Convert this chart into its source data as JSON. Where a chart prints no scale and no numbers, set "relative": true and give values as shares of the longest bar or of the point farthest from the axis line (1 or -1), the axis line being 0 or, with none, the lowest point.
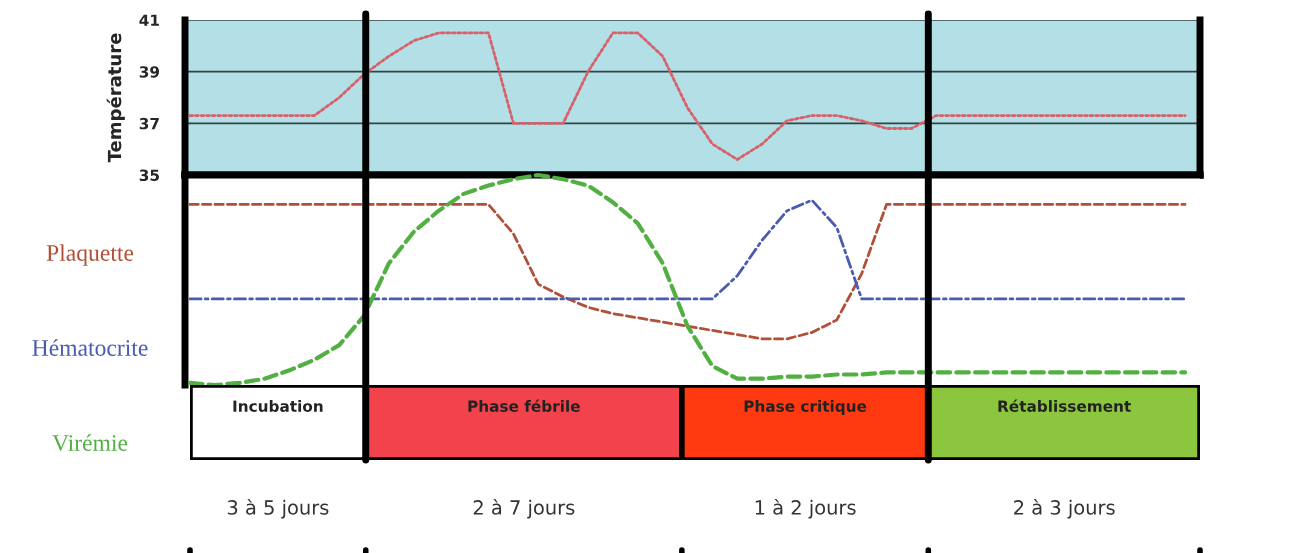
{
  "chart_data": [
    {
      "type": "line",
      "ylabel": "Température",
      "categories": [
        null,
        null,
        null,
        null,
        null,
        null,
        null,
        null,
        null,
        null,
        null,
        null,
        null,
        null,
        null,
        null,
        null,
        null,
        null,
        null,
        null,
        null,
        null,
        null,
        null,
        null,
        null,
        null,
        null,
        null,
        null,
        null,
        null,
        null,
        null,
        null,
        null,
        null,
        null,
        null,
        null
      ],
      "ylim": [
        35,
        41
      ],
      "yticks": [
        35,
        37,
        39,
        41
      ],
      "tick_labels": "y",
      "grid": "y",
      "line_style": "dotted",
      "series": [
        {
          "color": "#d9606a",
          "values": [
            37.3,
            37.3,
            37.3,
            37.3,
            37.3,
            37.3,
            38.0,
            38.9,
            39.6,
            40.2,
            40.5,
            40.5,
            40.5,
            37.0,
            37.0,
            37.0,
            39.0,
            40.5,
            40.5,
            39.6,
            37.6,
            36.2,
            35.6,
            36.2,
            37.1,
            37.3,
            37.3,
            37.1,
            36.8,
            36.8,
            37.3,
            37.3,
            37.3,
            37.3,
            37.3,
            37.3,
            37.3,
            37.3,
            37.3,
            37.3,
            37.3
          ]
        }
      ]
    },
    {
      "type": "line",
      "relative": true,
      "categories": [
        null,
        null,
        null,
        null,
        null,
        null,
        null,
        null,
        null,
        null,
        null,
        null,
        null,
        null,
        null,
        null,
        null,
        null,
        null,
        null,
        null,
        null,
        null,
        null,
        null,
        null,
        null,
        null,
        null,
        null,
        null,
        null,
        null,
        null,
        null,
        null,
        null,
        null,
        null,
        null,
        null
      ],
      "tick_labels": false,
      "series": [
        {
          "name": "Plaquette",
          "color": "#b05038",
          "line_style": "dashed",
          "values": [
            0.86,
            0.86,
            0.86,
            0.86,
            0.86,
            0.86,
            0.86,
            0.86,
            0.86,
            0.86,
            0.86,
            0.86,
            0.86,
            0.72,
            0.48,
            0.42,
            0.37,
            0.34,
            0.32,
            0.3,
            0.28,
            0.26,
            0.24,
            0.22,
            0.22,
            0.25,
            0.31,
            0.53,
            0.86,
            0.86,
            0.86,
            0.86,
            0.86,
            0.86,
            0.86,
            0.86,
            0.86,
            0.86,
            0.86,
            0.86,
            0.86
          ]
        },
        {
          "name": "Hématocrite",
          "color": "#4a5cb0",
          "line_style": "dashdot",
          "values": [
            0.41,
            0.41,
            0.41,
            0.41,
            0.41,
            0.41,
            0.41,
            0.41,
            0.41,
            0.41,
            0.41,
            0.41,
            0.41,
            0.41,
            0.41,
            0.41,
            0.41,
            0.41,
            0.41,
            0.41,
            0.41,
            0.41,
            0.52,
            0.69,
            0.83,
            0.88,
            0.75,
            0.41,
            0.41,
            0.41,
            0.41,
            0.41,
            0.41,
            0.41,
            0.41,
            0.41,
            0.41,
            0.41,
            0.41,
            0.41,
            0.41
          ]
        },
        {
          "name": "Virémie",
          "color": "#52b043",
          "line_style": "dashed",
          "values": [
            0.01,
            0.0,
            0.01,
            0.03,
            0.07,
            0.12,
            0.19,
            0.33,
            0.58,
            0.73,
            0.83,
            0.91,
            0.95,
            0.98,
            1.0,
            0.98,
            0.95,
            0.87,
            0.77,
            0.58,
            0.28,
            0.09,
            0.03,
            0.03,
            0.04,
            0.04,
            0.05,
            0.05,
            0.06,
            0.06,
            0.06,
            0.06,
            0.06,
            0.06,
            0.06,
            0.06,
            0.06,
            0.06,
            0.06,
            0.06,
            0.06
          ]
        }
      ]
    },
    {
      "type": "bar",
      "orientation": "horizontal",
      "stacked": true,
      "relative": true,
      "categories": [
        null
      ],
      "annotations": [
        "3 à 5 jours",
        "2 à 7 jours",
        "1 à 2 jours",
        "2 à 3 jours"
      ],
      "series": [
        {
          "name": "Incubation",
          "color": "#ffffff",
          "values": [
            0.174
          ]
        },
        {
          "name": "Phase fébrile",
          "color": "#f2434d",
          "values": [
            0.313
          ]
        },
        {
          "name": "Phase critique",
          "color": "#ff3a10",
          "values": [
            0.244
          ]
        },
        {
          "name": "Rétablissement",
          "color": "#8cc63f",
          "values": [
            0.269
          ]
        }
      ]
    }
  ]
}
